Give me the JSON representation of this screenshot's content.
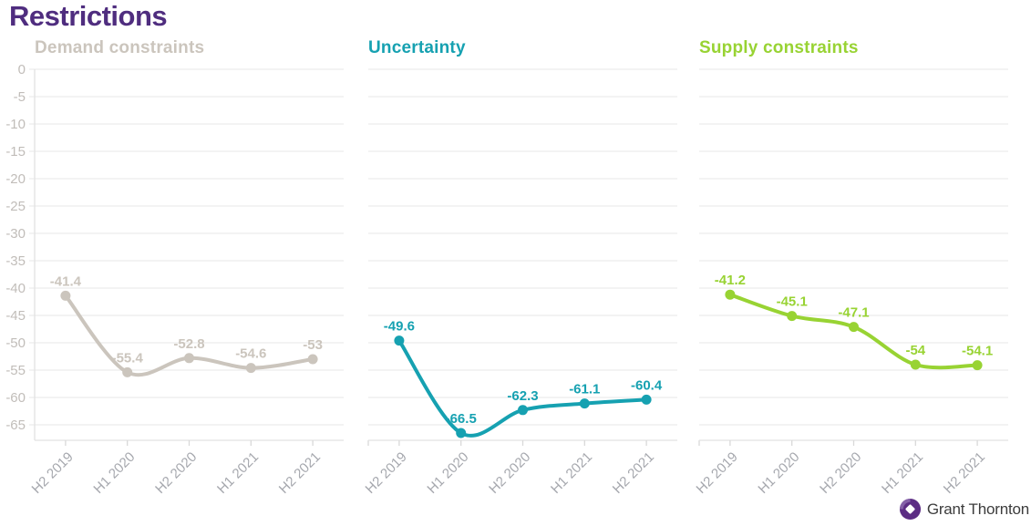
{
  "page": {
    "title": "Restrictions"
  },
  "logo": {
    "text": "Grant Thornton"
  },
  "colors": {
    "title": "#4f2d7f",
    "grid": "#ececec",
    "axis": "#e2e2e2",
    "tick": "#d9d9d9",
    "y_labels": "#c1bdb9",
    "x_labels": "#a6a8ae",
    "logo_purple": "#5c2d84",
    "logo_purple_light": "#8c6bae",
    "logo_text_color": "#3c3c3c"
  },
  "chart_data": {
    "type": "line",
    "categories": [
      "H2 2019",
      "H1 2020",
      "H2 2020",
      "H1 2021",
      "H2 2021"
    ],
    "y_ticks": [
      0,
      -5,
      -10,
      -15,
      -20,
      -25,
      -30,
      -35,
      -40,
      -45,
      -50,
      -55,
      -60,
      -65
    ],
    "ylim": [
      -69,
      0
    ],
    "grid": true,
    "point_labels": true,
    "legend_position": "none",
    "series": [
      {
        "name": "Demand constraints",
        "color": "#cbc5bd",
        "values": [
          -41.4,
          -55.4,
          -52.8,
          -54.6,
          -53
        ],
        "show_y_axis": true
      },
      {
        "name": "Uncertainty",
        "color": "#16a1b1",
        "values": [
          -49.6,
          -66.5,
          -62.3,
          -61.1,
          -60.4
        ],
        "show_y_axis": false
      },
      {
        "name": "Supply constraints",
        "color": "#98d333",
        "values": [
          -41.2,
          -45.1,
          -47.1,
          -54,
          -54.1
        ],
        "show_y_axis": false
      }
    ]
  }
}
